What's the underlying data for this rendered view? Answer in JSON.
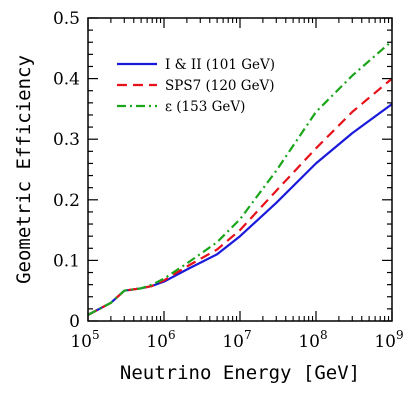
{
  "chart_data": {
    "type": "line",
    "title": "",
    "xlabel": "Neutrino Energy [GeV]",
    "ylabel": "Geometric Efficiency",
    "x_scale": "log",
    "xlim": [
      100000,
      1000000000
    ],
    "ylim": [
      0,
      0.5
    ],
    "x_ticks": [
      {
        "value": 100000,
        "base": "10",
        "exp": "5"
      },
      {
        "value": 1000000,
        "base": "10",
        "exp": "6"
      },
      {
        "value": 10000000,
        "base": "10",
        "exp": "7"
      },
      {
        "value": 100000000,
        "base": "10",
        "exp": "8"
      },
      {
        "value": 1000000000,
        "base": "10",
        "exp": "9"
      }
    ],
    "y_ticks": [
      {
        "value": 0,
        "label": "0"
      },
      {
        "value": 0.1,
        "label": "0.1"
      },
      {
        "value": 0.2,
        "label": "0.2"
      },
      {
        "value": 0.3,
        "label": "0.3"
      },
      {
        "value": 0.4,
        "label": "0.4"
      },
      {
        "value": 0.5,
        "label": "0.5"
      }
    ],
    "grid": false,
    "legend_position": "top-left",
    "series": [
      {
        "name": "I & II (101 GeV)",
        "color": "#1a1adb",
        "dash": "solid",
        "x": [
          100000,
          200000,
          300000,
          500000,
          700000,
          1000000,
          2000000,
          5000000,
          10000000,
          30000000,
          100000000,
          300000000,
          1000000000
        ],
        "y": [
          0.01,
          0.03,
          0.05,
          0.054,
          0.058,
          0.065,
          0.085,
          0.11,
          0.14,
          0.195,
          0.26,
          0.31,
          0.358
        ]
      },
      {
        "name": "SPS7 (120 GeV)",
        "color": "#e8101a",
        "dash": "dashed",
        "x": [
          100000,
          200000,
          300000,
          500000,
          700000,
          1000000,
          2000000,
          5000000,
          10000000,
          30000000,
          100000000,
          300000000,
          1000000000
        ],
        "y": [
          0.01,
          0.03,
          0.05,
          0.054,
          0.058,
          0.067,
          0.09,
          0.118,
          0.15,
          0.215,
          0.285,
          0.345,
          0.4
        ]
      },
      {
        "name": "ε (153 GeV)",
        "color": "#1aa51a",
        "dash": "dashdot",
        "x": [
          100000,
          200000,
          300000,
          500000,
          700000,
          1000000,
          2000000,
          5000000,
          10000000,
          30000000,
          100000000,
          300000000,
          1000000000
        ],
        "y": [
          0.01,
          0.03,
          0.05,
          0.054,
          0.06,
          0.07,
          0.095,
          0.13,
          0.168,
          0.248,
          0.345,
          0.405,
          0.462
        ]
      }
    ]
  }
}
